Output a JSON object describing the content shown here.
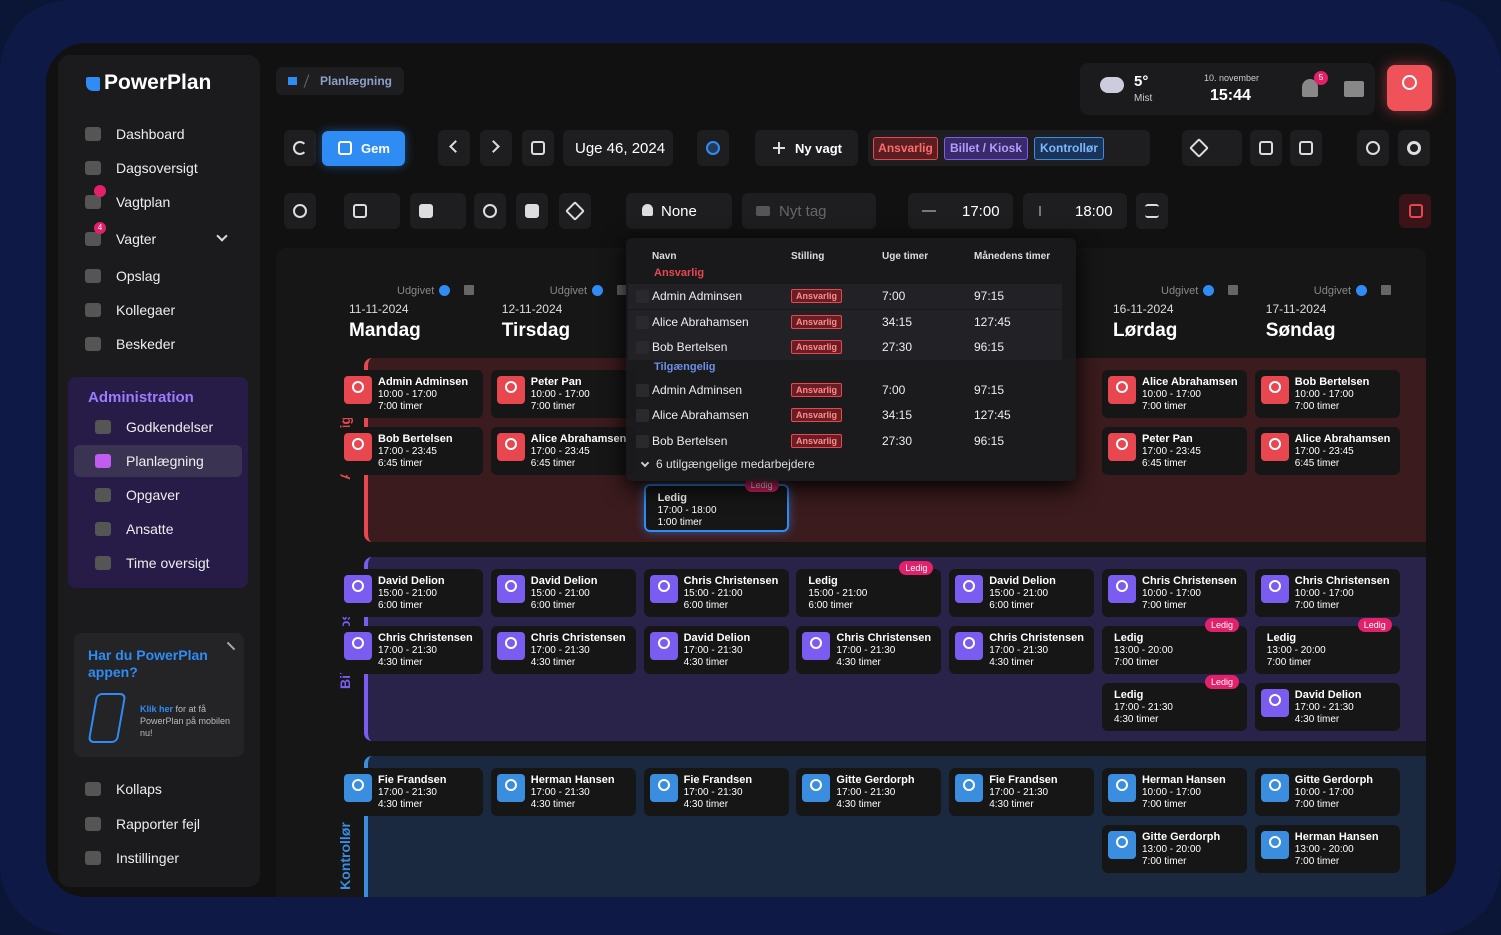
{
  "sidebar": {
    "brand": "PowerPlan",
    "nav": [
      {
        "label": "Dashboard"
      },
      {
        "label": "Dagsoversigt"
      },
      {
        "label": "Vagtplan",
        "dot": true
      },
      {
        "label": "Vagter",
        "badge": "4"
      },
      {
        "label": "Opslag"
      },
      {
        "label": "Kollegaer"
      },
      {
        "label": "Beskeder"
      }
    ],
    "admin": {
      "title": "Administration",
      "items": [
        {
          "label": "Godkendelser"
        },
        {
          "label": "Planlægning",
          "active": true
        },
        {
          "label": "Opgaver"
        },
        {
          "label": "Ansatte"
        },
        {
          "label": "Time oversigt"
        }
      ]
    },
    "promo": {
      "title": "Har du PowerPlan appen?",
      "link": "Klik her",
      "text": "for at få PowerPlan på mobilen nu!"
    },
    "footer": [
      {
        "label": "Kollaps"
      },
      {
        "label": "Rapporter fejl"
      },
      {
        "label": "Instillinger"
      }
    ]
  },
  "header": {
    "breadcrumb": "Planlægning",
    "weather": {
      "temp": "5°",
      "desc": "Mist"
    },
    "date": "10. november",
    "time": "15:44",
    "notifications": "5"
  },
  "toolbar": {
    "save": "Gem",
    "week": "Uge 46, 2024",
    "new_shift": "Ny vagt",
    "tags": [
      "Ansvarlig",
      "Billet / Kiosk",
      "Kontrollør"
    ],
    "person": "None",
    "tag_placeholder": "Nyt tag",
    "start": "17:00",
    "end": "18:00"
  },
  "days": [
    {
      "status": "Udgivet",
      "date": "11-11-2024",
      "name": "Mandag"
    },
    {
      "status": "Udgivet",
      "date": "12-11-2024",
      "name": "Tirsdag"
    },
    null,
    null,
    null,
    {
      "status": "Udgivet",
      "date": "16-11-2024",
      "name": "Lørdag"
    },
    {
      "status": "Udgivet",
      "date": "17-11-2024",
      "name": "Søndag"
    }
  ],
  "groups": [
    {
      "name": "Ansvarlig",
      "color": "#e8474f",
      "columns": [
        [
          {
            "name": "Admin Adminsen",
            "time": "10:00 - 17:00",
            "hours": "7:00 timer"
          },
          {
            "name": "Bob Bertelsen",
            "time": "17:00 - 23:45",
            "hours": "6:45 timer"
          }
        ],
        [
          {
            "name": "Peter Pan",
            "time": "10:00 - 17:00",
            "hours": "7:00 timer"
          },
          {
            "name": "Alice Abrahamsen",
            "time": "17:00 - 23:45",
            "hours": "6:45 timer"
          }
        ],
        [
          null,
          null,
          {
            "name": "Ledig",
            "time": "17:00 - 18:00",
            "hours": "1:00 timer",
            "tag": "Ledig",
            "selected": true
          }
        ],
        [],
        [],
        [
          {
            "name": "Alice Abrahamsen",
            "time": "10:00 - 17:00",
            "hours": "7:00 timer"
          },
          {
            "name": "Peter Pan",
            "time": "17:00 - 23:45",
            "hours": "6:45 timer"
          }
        ],
        [
          {
            "name": "Bob Bertelsen",
            "time": "10:00 - 17:00",
            "hours": "7:00 timer"
          },
          {
            "name": "Alice Abrahamsen",
            "time": "17:00 - 23:45",
            "hours": "6:45 timer"
          }
        ]
      ]
    },
    {
      "name": "Billet / Kiosk",
      "color": "#7b5cf0",
      "columns": [
        [
          {
            "name": "David Delion",
            "time": "15:00 - 21:00",
            "hours": "6:00 timer"
          },
          {
            "name": "Chris Christensen",
            "time": "17:00 - 21:30",
            "hours": "4:30 timer"
          }
        ],
        [
          {
            "name": "David Delion",
            "time": "15:00 - 21:00",
            "hours": "6:00 timer"
          },
          {
            "name": "Chris Christensen",
            "time": "17:00 - 21:30",
            "hours": "4:30 timer"
          }
        ],
        [
          {
            "name": "Chris Christensen",
            "time": "15:00 - 21:00",
            "hours": "6:00 timer"
          },
          {
            "name": "David Delion",
            "time": "17:00 - 21:30",
            "hours": "4:30 timer"
          }
        ],
        [
          {
            "name": "Ledig",
            "time": "15:00 - 21:00",
            "hours": "6:00 timer",
            "tag": "Ledig"
          },
          {
            "name": "Chris Christensen",
            "time": "17:00 - 21:30",
            "hours": "4:30 timer"
          }
        ],
        [
          {
            "name": "David Delion",
            "time": "15:00 - 21:00",
            "hours": "6:00 timer"
          },
          {
            "name": "Chris Christensen",
            "time": "17:00 - 21:30",
            "hours": "4:30 timer"
          }
        ],
        [
          {
            "name": "Chris Christensen",
            "time": "10:00 - 17:00",
            "hours": "7:00 timer"
          },
          {
            "name": "Ledig",
            "time": "13:00 - 20:00",
            "hours": "7:00 timer",
            "tag": "Ledig"
          },
          {
            "name": "Ledig",
            "time": "17:00 - 21:30",
            "hours": "4:30 timer",
            "tag": "Ledig"
          }
        ],
        [
          {
            "name": "Chris Christensen",
            "time": "10:00 - 17:00",
            "hours": "7:00 timer"
          },
          {
            "name": "Ledig",
            "time": "13:00 - 20:00",
            "hours": "7:00 timer",
            "tag": "Ledig"
          },
          {
            "name": "David Delion",
            "time": "17:00 - 21:30",
            "hours": "4:30 timer"
          }
        ]
      ]
    },
    {
      "name": "Kontrollør",
      "color": "#3b8de0",
      "columns": [
        [
          {
            "name": "Fie Frandsen",
            "time": "17:00 - 21:30",
            "hours": "4:30 timer"
          }
        ],
        [
          {
            "name": "Herman Hansen",
            "time": "17:00 - 21:30",
            "hours": "4:30 timer"
          }
        ],
        [
          {
            "name": "Fie Frandsen",
            "time": "17:00 - 21:30",
            "hours": "4:30 timer"
          }
        ],
        [
          {
            "name": "Gitte Gerdorph",
            "time": "17:00 - 21:30",
            "hours": "4:30 timer"
          }
        ],
        [
          {
            "name": "Fie Frandsen",
            "time": "17:00 - 21:30",
            "hours": "4:30 timer"
          }
        ],
        [
          {
            "name": "Herman Hansen",
            "time": "10:00 - 17:00",
            "hours": "7:00 timer"
          },
          {
            "name": "Gitte Gerdorph",
            "time": "13:00 - 20:00",
            "hours": "7:00 timer"
          }
        ],
        [
          {
            "name": "Gitte Gerdorph",
            "time": "10:00 - 17:00",
            "hours": "7:00 timer"
          },
          {
            "name": "Herman Hansen",
            "time": "13:00 - 20:00",
            "hours": "7:00 timer"
          }
        ]
      ]
    }
  ],
  "dropdown": {
    "headers": [
      "Navn",
      "Stilling",
      "Uge timer",
      "Månedens timer"
    ],
    "sections": [
      {
        "title": "Ansvarlig",
        "rows": [
          [
            "Admin Adminsen",
            "Ansvarlig",
            "7:00",
            "97:15"
          ],
          [
            "Alice Abrahamsen",
            "Ansvarlig",
            "34:15",
            "127:45"
          ],
          [
            "Bob Bertelsen",
            "Ansvarlig",
            "27:30",
            "96:15"
          ]
        ]
      },
      {
        "title": "Tilgængelig",
        "rows": [
          [
            "Admin Adminsen",
            "Ansvarlig",
            "7:00",
            "97:15"
          ],
          [
            "Alice Abrahamsen",
            "Ansvarlig",
            "34:15",
            "127:45"
          ],
          [
            "Bob Bertelsen",
            "Ansvarlig",
            "27:30",
            "96:15"
          ]
        ]
      }
    ],
    "footer": "6 utilgængelige medarbejdere"
  }
}
